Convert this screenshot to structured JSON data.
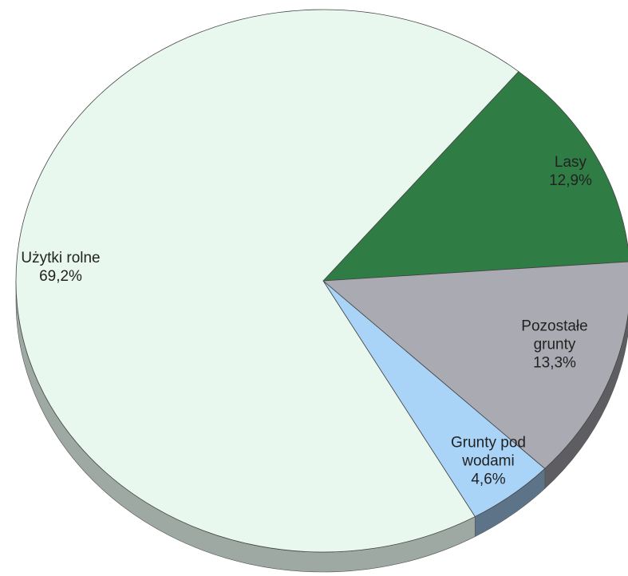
{
  "chart_data": {
    "type": "pie",
    "categories": [
      "Lasy",
      "Pozostałe grunty",
      "Grunty pod wodami",
      "Użytki rolne"
    ],
    "values": [
      12.9,
      13.3,
      4.6,
      69.2
    ],
    "value_labels": [
      "12,9%",
      "13,3%",
      "4,6%",
      "69,2%"
    ],
    "colors": [
      "#2f7d45",
      "#aaaab2",
      "#a9d3f7",
      "#e9f8ef"
    ]
  }
}
